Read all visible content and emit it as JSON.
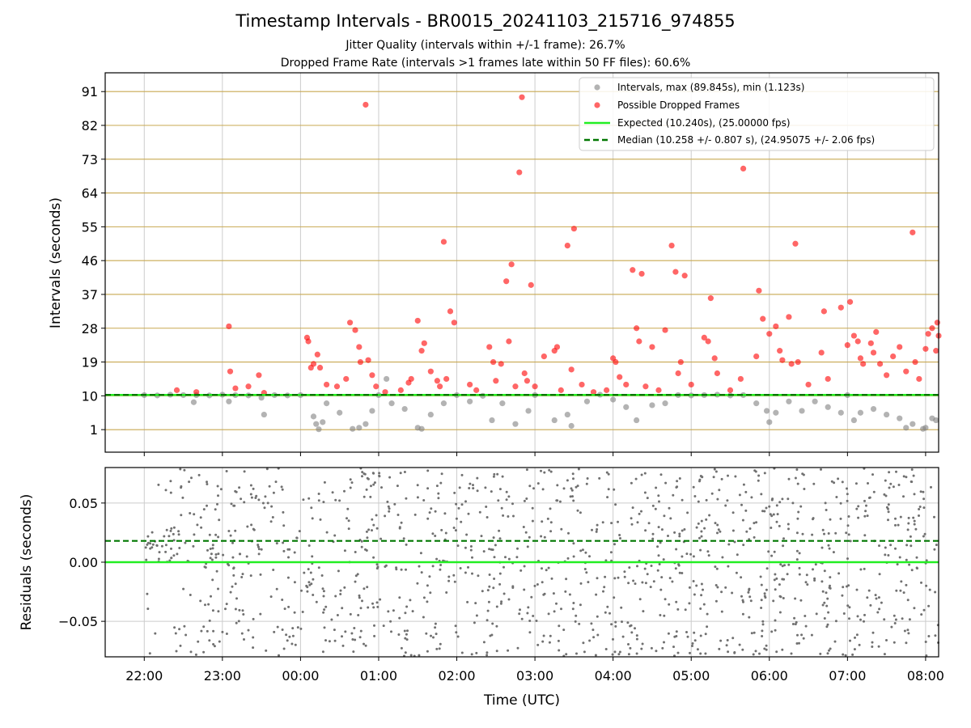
{
  "title": "Timestamp Intervals - BR0015_20241103_215716_974855",
  "subtitle_1": "Jitter Quality (intervals within +/-1 frame): 26.7%",
  "subtitle_2": "Dropped Frame Rate (intervals >1 frames late within 50 FF files): 60.6%",
  "colors": {
    "intervals": "#808080",
    "dropped": "#ff0000",
    "expected": "#22ee22",
    "median": "#007700",
    "hgrid_top": "#c8a850",
    "grid": "#cccccc"
  },
  "chart_data": [
    {
      "type": "scatter",
      "panel": "intervals",
      "ylabel": "Intervals (seconds)",
      "xlim": [
        "21:30",
        "08:10"
      ],
      "ylim": [
        -5,
        96
      ],
      "yticks": [
        "91",
        "82",
        "73",
        "64",
        "55",
        "46",
        "37",
        "28",
        "19",
        "10",
        "1"
      ],
      "grid": "on",
      "legend_position": "top-right",
      "legend": [
        "Intervals, max (89.845s), min (1.123s)",
        "Possible Dropped Frames",
        "Expected (10.240s), (25.00000 fps)",
        "Median (10.258 +/- 0.807 s), (24.95075 +/- 2.06 fps)"
      ],
      "expected_y": 10.24,
      "median_y": 10.258,
      "series": [
        {
          "name": "Intervals, max (89.845s), min (1.123s)",
          "points": [
            [
              "22:00",
              10.2
            ],
            [
              "22:10",
              10.1
            ],
            [
              "22:20",
              10.3
            ],
            [
              "22:30",
              10.2
            ],
            [
              "22:38",
              8.3
            ],
            [
              "22:40",
              10.2
            ],
            [
              "22:50",
              10.1
            ],
            [
              "23:00",
              10.3
            ],
            [
              "23:05",
              8.5
            ],
            [
              "23:10",
              10.2
            ],
            [
              "23:20",
              10.1
            ],
            [
              "23:30",
              9.5
            ],
            [
              "23:32",
              5.0
            ],
            [
              "23:40",
              10.2
            ],
            [
              "23:50",
              10.1
            ],
            [
              "00:00",
              10.2
            ],
            [
              "00:10",
              4.5
            ],
            [
              "00:12",
              2.5
            ],
            [
              "00:14",
              1.1
            ],
            [
              "00:17",
              3.0
            ],
            [
              "00:20",
              8.0
            ],
            [
              "00:30",
              5.5
            ],
            [
              "00:40",
              1.2
            ],
            [
              "00:45",
              1.5
            ],
            [
              "00:50",
              2.5
            ],
            [
              "00:55",
              6.0
            ],
            [
              "01:00",
              10.2
            ],
            [
              "01:06",
              14.5
            ],
            [
              "01:10",
              8.0
            ],
            [
              "01:20",
              6.5
            ],
            [
              "01:30",
              1.5
            ],
            [
              "01:33",
              1.2
            ],
            [
              "01:40",
              5.0
            ],
            [
              "01:50",
              8.0
            ],
            [
              "02:00",
              10.2
            ],
            [
              "02:10",
              8.5
            ],
            [
              "02:20",
              10.0
            ],
            [
              "02:27",
              3.5
            ],
            [
              "02:35",
              8.0
            ],
            [
              "02:45",
              2.5
            ],
            [
              "02:55",
              6.0
            ],
            [
              "03:00",
              10.2
            ],
            [
              "03:15",
              3.5
            ],
            [
              "03:25",
              5.0
            ],
            [
              "03:28",
              2.0
            ],
            [
              "03:40",
              8.5
            ],
            [
              "03:50",
              10.3
            ],
            [
              "04:00",
              9.0
            ],
            [
              "04:10",
              7.0
            ],
            [
              "04:18",
              3.5
            ],
            [
              "04:30",
              7.5
            ],
            [
              "04:40",
              8.0
            ],
            [
              "04:50",
              10.2
            ],
            [
              "05:00",
              10.1
            ],
            [
              "05:10",
              10.2
            ],
            [
              "05:20",
              10.3
            ],
            [
              "05:30",
              10.1
            ],
            [
              "05:40",
              10.2
            ],
            [
              "05:50",
              8.0
            ],
            [
              "05:58",
              6.0
            ],
            [
              "06:00",
              3.0
            ],
            [
              "06:05",
              5.5
            ],
            [
              "06:15",
              8.5
            ],
            [
              "06:25",
              6.0
            ],
            [
              "06:35",
              8.5
            ],
            [
              "06:45",
              7.0
            ],
            [
              "06:55",
              5.5
            ],
            [
              "07:00",
              10.2
            ],
            [
              "07:05",
              3.5
            ],
            [
              "07:10",
              5.5
            ],
            [
              "07:20",
              6.5
            ],
            [
              "07:30",
              5.0
            ],
            [
              "07:40",
              4.0
            ],
            [
              "07:45",
              1.5
            ],
            [
              "07:50",
              2.5
            ],
            [
              "07:58",
              1.2
            ],
            [
              "08:00",
              1.5
            ],
            [
              "08:05",
              4.0
            ],
            [
              "08:08",
              3.5
            ]
          ]
        },
        {
          "name": "Possible Dropped Frames",
          "points": [
            [
              "22:25",
              11.5
            ],
            [
              "22:40",
              11.0
            ],
            [
              "23:05",
              28.5
            ],
            [
              "23:06",
              16.5
            ],
            [
              "23:10",
              12.0
            ],
            [
              "23:20",
              12.5
            ],
            [
              "23:28",
              15.5
            ],
            [
              "23:32",
              10.8
            ],
            [
              "00:05",
              25.5
            ],
            [
              "00:06",
              24.5
            ],
            [
              "00:08",
              17.5
            ],
            [
              "00:10",
              18.5
            ],
            [
              "00:13",
              21.0
            ],
            [
              "00:15",
              17.5
            ],
            [
              "00:20",
              13.0
            ],
            [
              "00:28",
              12.5
            ],
            [
              "00:35",
              14.5
            ],
            [
              "00:38",
              29.5
            ],
            [
              "00:42",
              27.5
            ],
            [
              "00:45",
              23.0
            ],
            [
              "00:46",
              19.0
            ],
            [
              "00:50",
              87.5
            ],
            [
              "00:52",
              19.5
            ],
            [
              "00:55",
              15.5
            ],
            [
              "00:58",
              12.5
            ],
            [
              "01:05",
              11.0
            ],
            [
              "01:17",
              11.5
            ],
            [
              "01:23",
              13.5
            ],
            [
              "01:25",
              14.5
            ],
            [
              "01:30",
              30.0
            ],
            [
              "01:33",
              22.0
            ],
            [
              "01:35",
              24.0
            ],
            [
              "01:40",
              16.5
            ],
            [
              "01:45",
              14.0
            ],
            [
              "01:47",
              12.5
            ],
            [
              "01:50",
              51.0
            ],
            [
              "01:52",
              14.5
            ],
            [
              "01:55",
              32.5
            ],
            [
              "01:58",
              29.5
            ],
            [
              "02:10",
              13.0
            ],
            [
              "02:15",
              11.5
            ],
            [
              "02:25",
              23.0
            ],
            [
              "02:28",
              19.0
            ],
            [
              "02:30",
              14.0
            ],
            [
              "02:34",
              18.5
            ],
            [
              "02:38",
              40.5
            ],
            [
              "02:40",
              24.5
            ],
            [
              "02:42",
              45.0
            ],
            [
              "02:45",
              12.5
            ],
            [
              "02:48",
              69.5
            ],
            [
              "02:50",
              89.5
            ],
            [
              "02:52",
              16.0
            ],
            [
              "02:54",
              14.0
            ],
            [
              "02:57",
              39.5
            ],
            [
              "03:00",
              12.5
            ],
            [
              "03:07",
              20.5
            ],
            [
              "03:15",
              22.0
            ],
            [
              "03:17",
              23.0
            ],
            [
              "03:20",
              11.5
            ],
            [
              "03:25",
              50.0
            ],
            [
              "03:28",
              17.0
            ],
            [
              "03:30",
              54.5
            ],
            [
              "03:36",
              13.0
            ],
            [
              "03:45",
              11.0
            ],
            [
              "03:55",
              11.5
            ],
            [
              "04:00",
              20.0
            ],
            [
              "04:02",
              19.0
            ],
            [
              "04:05",
              15.0
            ],
            [
              "04:10",
              13.0
            ],
            [
              "04:15",
              43.5
            ],
            [
              "04:18",
              28.0
            ],
            [
              "04:20",
              24.5
            ],
            [
              "04:22",
              42.5
            ],
            [
              "04:25",
              12.5
            ],
            [
              "04:30",
              23.0
            ],
            [
              "04:35",
              11.5
            ],
            [
              "04:40",
              27.5
            ],
            [
              "04:45",
              50.0
            ],
            [
              "04:48",
              43.0
            ],
            [
              "04:50",
              16.0
            ],
            [
              "04:52",
              19.0
            ],
            [
              "04:55",
              42.0
            ],
            [
              "05:00",
              13.0
            ],
            [
              "05:10",
              25.5
            ],
            [
              "05:13",
              24.5
            ],
            [
              "05:15",
              36.0
            ],
            [
              "05:18",
              20.0
            ],
            [
              "05:20",
              16.0
            ],
            [
              "05:30",
              11.5
            ],
            [
              "05:38",
              14.5
            ],
            [
              "05:40",
              70.5
            ],
            [
              "05:50",
              20.5
            ],
            [
              "05:52",
              38.0
            ],
            [
              "05:55",
              30.5
            ],
            [
              "06:00",
              26.5
            ],
            [
              "06:05",
              28.5
            ],
            [
              "06:08",
              22.0
            ],
            [
              "06:10",
              19.5
            ],
            [
              "06:15",
              31.0
            ],
            [
              "06:17",
              18.5
            ],
            [
              "06:20",
              50.5
            ],
            [
              "06:22",
              19.0
            ],
            [
              "06:30",
              13.0
            ],
            [
              "06:40",
              21.5
            ],
            [
              "06:42",
              32.5
            ],
            [
              "06:45",
              14.5
            ],
            [
              "06:55",
              33.5
            ],
            [
              "07:00",
              23.5
            ],
            [
              "07:02",
              35.0
            ],
            [
              "07:05",
              26.0
            ],
            [
              "07:08",
              24.5
            ],
            [
              "07:10",
              20.0
            ],
            [
              "07:12",
              18.5
            ],
            [
              "07:18",
              24.0
            ],
            [
              "07:20",
              21.5
            ],
            [
              "07:22",
              27.0
            ],
            [
              "07:25",
              18.5
            ],
            [
              "07:30",
              15.5
            ],
            [
              "07:35",
              20.5
            ],
            [
              "07:40",
              23.0
            ],
            [
              "07:45",
              16.5
            ],
            [
              "07:50",
              53.5
            ],
            [
              "07:52",
              19.0
            ],
            [
              "07:55",
              14.5
            ],
            [
              "08:00",
              22.5
            ],
            [
              "08:02",
              26.5
            ],
            [
              "08:05",
              28.0
            ],
            [
              "08:08",
              22.0
            ],
            [
              "08:09",
              29.5
            ],
            [
              "08:10",
              26.0
            ]
          ]
        }
      ]
    },
    {
      "type": "scatter",
      "panel": "residuals",
      "xlabel": "Time (UTC)",
      "ylabel": "Residuals (seconds)",
      "xlim": [
        "21:30",
        "08:10"
      ],
      "ylim": [
        -0.08,
        0.08
      ],
      "yticks": [
        "0.05",
        "0.00",
        "−0.05"
      ],
      "xticks": [
        "22:00",
        "23:00",
        "00:00",
        "01:00",
        "02:00",
        "03:00",
        "04:00",
        "05:00",
        "06:00",
        "07:00",
        "08:00"
      ],
      "grid": "on",
      "zero_line": 0.0,
      "median_residual": 0.018
    }
  ]
}
